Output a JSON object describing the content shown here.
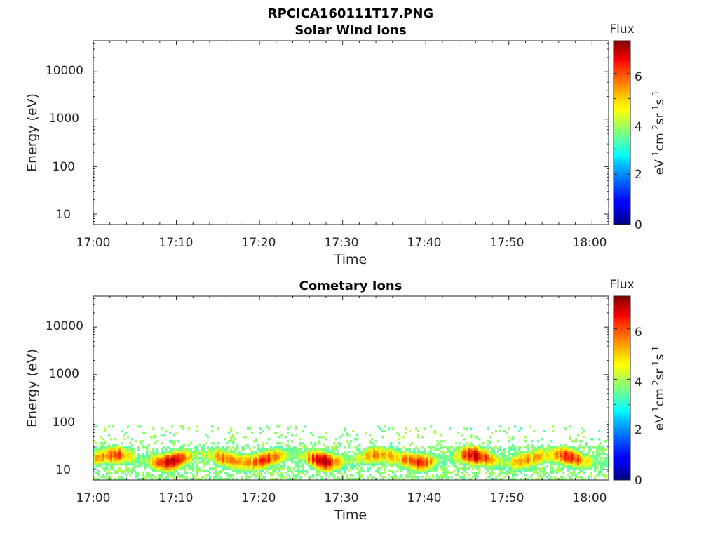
{
  "figure": {
    "title": "RPCICA160111T17.PNG"
  },
  "chart_data": [
    {
      "type": "heatmap",
      "title": "Solar Wind Ions",
      "xlabel": "Time",
      "ylabel": "Energy (eV)",
      "x_range": [
        "17:00",
        "18:02"
      ],
      "x_tick_labels": [
        "17:00",
        "17:10",
        "17:20",
        "17:30",
        "17:40",
        "17:50",
        "18:00"
      ],
      "y_scale": "log",
      "ylim": [
        6,
        45000
      ],
      "y_tick_labels": [
        "10",
        "100",
        "1000",
        "10000"
      ],
      "grid": false,
      "colorbar": {
        "title": "Flux",
        "label_base": "eV",
        "label_sup1": "-1",
        "label_mid1": "cm",
        "label_sup2": "-2",
        "label_mid2": "sr",
        "label_sup3": "-1",
        "label_mid3": "s",
        "label_sup4": "-1",
        "range": [
          0,
          7.3
        ],
        "ticks": [
          "0",
          "2",
          "4",
          "6"
        ],
        "colormap": "jet"
      },
      "band": null
    },
    {
      "type": "heatmap",
      "title": "Cometary Ions",
      "xlabel": "Time",
      "ylabel": "Energy (eV)",
      "x_range": [
        "17:00",
        "18:02"
      ],
      "x_tick_labels": [
        "17:00",
        "17:10",
        "17:20",
        "17:30",
        "17:40",
        "17:50",
        "18:00"
      ],
      "y_scale": "log",
      "ylim": [
        6,
        45000
      ],
      "y_tick_labels": [
        "10",
        "100",
        "1000",
        "10000"
      ],
      "grid": false,
      "colorbar": {
        "title": "Flux",
        "label_base": "eV",
        "label_sup1": "-1",
        "label_mid1": "cm",
        "label_sup2": "-2",
        "label_mid2": "sr",
        "label_sup3": "-1",
        "label_mid3": "s",
        "label_sup4": "-1",
        "range": [
          0,
          7.3
        ],
        "ticks": [
          "0",
          "2",
          "4",
          "6"
        ],
        "colormap": "jet"
      },
      "band": {
        "energy_min": 6,
        "energy_max": 85,
        "peak_energy": 17,
        "peak_flux": 6.8
      }
    }
  ]
}
